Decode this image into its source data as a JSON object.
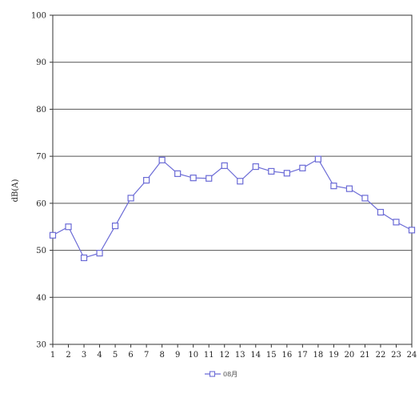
{
  "chart_data": {
    "type": "line",
    "title": "",
    "xlabel": "",
    "ylabel": "dB(A)",
    "ylim": [
      30,
      100
    ],
    "yticks": [
      30,
      40,
      50,
      60,
      70,
      80,
      90,
      100
    ],
    "grid": true,
    "legend_position": "bottom-center",
    "series_color": "#6b6bd6",
    "categories": [
      "1",
      "2",
      "3",
      "4",
      "5",
      "6",
      "7",
      "8",
      "9",
      "10",
      "11",
      "12",
      "13",
      "14",
      "15",
      "16",
      "17",
      "18",
      "19",
      "20",
      "21",
      "22",
      "23",
      "24"
    ],
    "series": [
      {
        "name": "08月",
        "values": [
          53.2,
          55.0,
          48.4,
          49.4,
          55.2,
          61.1,
          64.9,
          69.2,
          66.3,
          65.4,
          65.3,
          68.0,
          64.7,
          67.8,
          66.8,
          66.4,
          67.5,
          69.4,
          63.7,
          63.1,
          61.1,
          58.1,
          56.0,
          54.3
        ]
      }
    ]
  }
}
